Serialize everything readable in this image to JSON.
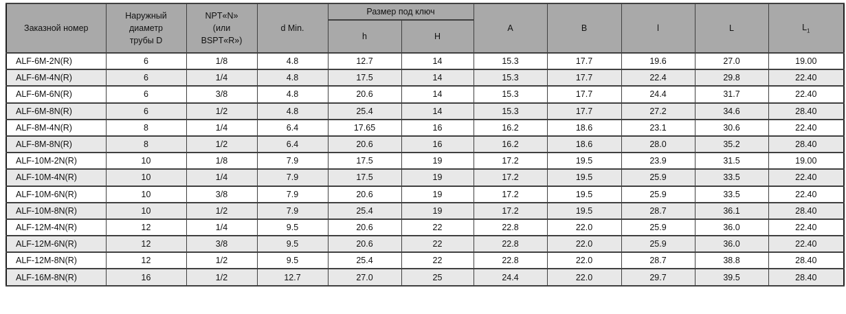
{
  "table": {
    "columns": {
      "order_number": "Заказной номер",
      "outer_diameter_lines": [
        "Наружный",
        "диаметр",
        "трубы D"
      ],
      "thread_lines": [
        "NPT«N»",
        "(или",
        "BSPT«R»)"
      ],
      "d_min": "d Min.",
      "wrench_size_group": "Размер под ключ",
      "h": "h",
      "H": "H",
      "A": "A",
      "B": "B",
      "l": "l",
      "L": "L",
      "L1_base": "L",
      "L1_sub": "1"
    },
    "rows": [
      [
        "ALF-6M-2N(R)",
        "6",
        "1/8",
        "4.8",
        "12.7",
        "14",
        "15.3",
        "17.7",
        "19.6",
        "27.0",
        "19.00"
      ],
      [
        "ALF-6M-4N(R)",
        "6",
        "1/4",
        "4.8",
        "17.5",
        "14",
        "15.3",
        "17.7",
        "22.4",
        "29.8",
        "22.40"
      ],
      [
        "ALF-6M-6N(R)",
        "6",
        "3/8",
        "4.8",
        "20.6",
        "14",
        "15.3",
        "17.7",
        "24.4",
        "31.7",
        "22.40"
      ],
      [
        "ALF-6M-8N(R)",
        "6",
        "1/2",
        "4.8",
        "25.4",
        "14",
        "15.3",
        "17.7",
        "27.2",
        "34.6",
        "28.40"
      ],
      [
        "ALF-8M-4N(R)",
        "8",
        "1/4",
        "6.4",
        "17.65",
        "16",
        "16.2",
        "18.6",
        "23.1",
        "30.6",
        "22.40"
      ],
      [
        "ALF-8M-8N(R)",
        "8",
        "1/2",
        "6.4",
        "20.6",
        "16",
        "16.2",
        "18.6",
        "28.0",
        "35.2",
        "28.40"
      ],
      [
        "ALF-10M-2N(R)",
        "10",
        "1/8",
        "7.9",
        "17.5",
        "19",
        "17.2",
        "19.5",
        "23.9",
        "31.5",
        "19.00"
      ],
      [
        "ALF-10M-4N(R)",
        "10",
        "1/4",
        "7.9",
        "17.5",
        "19",
        "17.2",
        "19.5",
        "25.9",
        "33.5",
        "22.40"
      ],
      [
        "ALF-10M-6N(R)",
        "10",
        "3/8",
        "7.9",
        "20.6",
        "19",
        "17.2",
        "19.5",
        "25.9",
        "33.5",
        "22.40"
      ],
      [
        "ALF-10M-8N(R)",
        "10",
        "1/2",
        "7.9",
        "25.4",
        "19",
        "17.2",
        "19.5",
        "28.7",
        "36.1",
        "28.40"
      ],
      [
        "ALF-12M-4N(R)",
        "12",
        "1/4",
        "9.5",
        "20.6",
        "22",
        "22.8",
        "22.0",
        "25.9",
        "36.0",
        "22.40"
      ],
      [
        "ALF-12M-6N(R)",
        "12",
        "3/8",
        "9.5",
        "20.6",
        "22",
        "22.8",
        "22.0",
        "25.9",
        "36.0",
        "22.40"
      ],
      [
        "ALF-12M-8N(R)",
        "12",
        "1/2",
        "9.5",
        "25.4",
        "22",
        "22.8",
        "22.0",
        "28.7",
        "38.8",
        "28.40"
      ],
      [
        "ALF-16M-8N(R)",
        "16",
        "1/2",
        "12.7",
        "27.0",
        "25",
        "24.4",
        "22.0",
        "29.7",
        "39.5",
        "28.40"
      ]
    ]
  },
  "colors": {
    "header_bg": "#a9a9a9",
    "stripe_bg": "#e8e8e8",
    "row_bg": "#ffffff",
    "border": "#3f3f3f",
    "outer_border": "#1f1f1f",
    "text": "#111111"
  }
}
